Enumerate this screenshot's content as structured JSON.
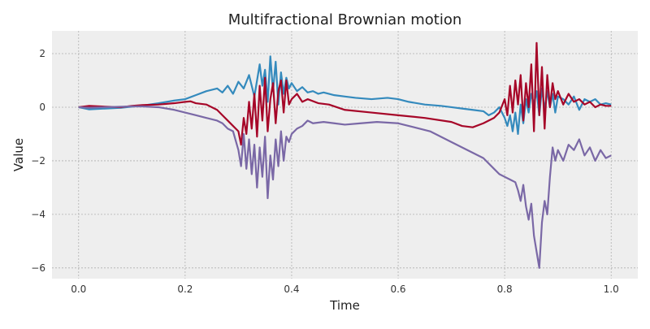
{
  "chart_data": {
    "type": "line",
    "title": "Multifractional Brownian motion",
    "xlabel": "Time",
    "ylabel": "Value",
    "xlim": [
      -0.05,
      1.05
    ],
    "ylim": [
      -6.4,
      2.85
    ],
    "grid": true,
    "legend": "none",
    "x_ticks": [
      0.0,
      0.2,
      0.4,
      0.6,
      0.8,
      1.0
    ],
    "x_tick_labels": [
      "0.0",
      "0.2",
      "0.4",
      "0.6",
      "0.8",
      "1.0"
    ],
    "y_ticks": [
      -6,
      -4,
      -2,
      0,
      2
    ],
    "y_tick_labels": [
      "−6",
      "−4",
      "−2",
      "0",
      "2"
    ],
    "colors": {
      "background": "#eeeeee",
      "grid": "#b0b0b0",
      "series": [
        "#348abd",
        "#a60628",
        "#7a68a6"
      ]
    },
    "series": [
      {
        "color": "#348abd",
        "x": [
          0.0,
          0.02,
          0.05,
          0.08,
          0.1,
          0.12,
          0.15,
          0.18,
          0.2,
          0.22,
          0.24,
          0.26,
          0.27,
          0.28,
          0.29,
          0.3,
          0.31,
          0.32,
          0.33,
          0.34,
          0.345,
          0.35,
          0.355,
          0.36,
          0.365,
          0.37,
          0.375,
          0.38,
          0.385,
          0.39,
          0.395,
          0.4,
          0.41,
          0.42,
          0.43,
          0.44,
          0.45,
          0.46,
          0.48,
          0.5,
          0.52,
          0.55,
          0.58,
          0.6,
          0.62,
          0.65,
          0.68,
          0.7,
          0.72,
          0.74,
          0.76,
          0.77,
          0.78,
          0.79,
          0.8,
          0.805,
          0.81,
          0.815,
          0.82,
          0.825,
          0.83,
          0.835,
          0.84,
          0.845,
          0.85,
          0.855,
          0.86,
          0.865,
          0.87,
          0.875,
          0.88,
          0.885,
          0.89,
          0.895,
          0.9,
          0.91,
          0.92,
          0.93,
          0.94,
          0.95,
          0.96,
          0.97,
          0.98,
          0.99,
          1.0
        ],
        "values": [
          0.0,
          -0.08,
          -0.05,
          -0.02,
          0.02,
          0.06,
          0.15,
          0.25,
          0.3,
          0.45,
          0.6,
          0.7,
          0.55,
          0.8,
          0.5,
          0.95,
          0.7,
          1.2,
          0.4,
          1.6,
          0.8,
          1.4,
          0.2,
          1.9,
          0.6,
          1.7,
          0.1,
          1.3,
          0.5,
          1.1,
          0.7,
          0.9,
          0.6,
          0.75,
          0.55,
          0.6,
          0.5,
          0.55,
          0.45,
          0.4,
          0.35,
          0.3,
          0.35,
          0.3,
          0.2,
          0.1,
          0.05,
          0.0,
          -0.05,
          -0.1,
          -0.15,
          -0.3,
          -0.2,
          0.0,
          -0.4,
          -0.7,
          -0.3,
          -0.9,
          -0.2,
          -1.0,
          0.1,
          -0.6,
          0.3,
          -0.2,
          0.5,
          0.1,
          0.6,
          -0.3,
          0.7,
          -0.1,
          0.6,
          0.0,
          0.5,
          -0.2,
          0.4,
          0.3,
          0.1,
          0.4,
          -0.1,
          0.3,
          0.2,
          0.3,
          0.1,
          0.15,
          0.1
        ]
      },
      {
        "color": "#a60628",
        "x": [
          0.0,
          0.02,
          0.05,
          0.08,
          0.1,
          0.12,
          0.15,
          0.18,
          0.2,
          0.21,
          0.22,
          0.24,
          0.26,
          0.27,
          0.28,
          0.29,
          0.3,
          0.305,
          0.31,
          0.315,
          0.32,
          0.325,
          0.33,
          0.335,
          0.34,
          0.345,
          0.35,
          0.355,
          0.36,
          0.365,
          0.37,
          0.375,
          0.38,
          0.385,
          0.39,
          0.395,
          0.4,
          0.41,
          0.42,
          0.43,
          0.45,
          0.47,
          0.5,
          0.55,
          0.6,
          0.65,
          0.7,
          0.72,
          0.74,
          0.76,
          0.78,
          0.79,
          0.8,
          0.805,
          0.81,
          0.815,
          0.82,
          0.825,
          0.83,
          0.835,
          0.84,
          0.845,
          0.85,
          0.855,
          0.86,
          0.865,
          0.87,
          0.875,
          0.88,
          0.885,
          0.89,
          0.895,
          0.9,
          0.91,
          0.92,
          0.93,
          0.94,
          0.95,
          0.96,
          0.97,
          0.98,
          0.99,
          1.0
        ],
        "values": [
          0.0,
          0.05,
          0.02,
          0.0,
          0.05,
          0.08,
          0.1,
          0.15,
          0.2,
          0.22,
          0.15,
          0.1,
          -0.1,
          -0.3,
          -0.5,
          -0.7,
          -0.9,
          -1.4,
          -0.4,
          -1.0,
          0.2,
          -0.8,
          0.5,
          -1.1,
          0.8,
          -0.5,
          1.1,
          -0.9,
          0.3,
          0.9,
          -0.6,
          0.6,
          1.0,
          -0.2,
          1.0,
          0.1,
          0.3,
          0.5,
          0.2,
          0.3,
          0.15,
          0.1,
          -0.1,
          -0.2,
          -0.3,
          -0.4,
          -0.55,
          -0.7,
          -0.75,
          -0.6,
          -0.4,
          -0.2,
          0.3,
          -0.3,
          0.8,
          -0.2,
          1.0,
          0.1,
          1.2,
          -0.5,
          0.9,
          0.0,
          1.6,
          -0.9,
          2.4,
          -0.3,
          1.5,
          -0.8,
          1.2,
          0.0,
          0.9,
          0.3,
          0.6,
          0.1,
          0.5,
          0.2,
          0.3,
          0.1,
          0.2,
          0.0,
          0.1,
          0.05,
          0.05
        ]
      },
      {
        "color": "#7a68a6",
        "x": [
          0.0,
          0.02,
          0.05,
          0.08,
          0.1,
          0.12,
          0.15,
          0.18,
          0.2,
          0.22,
          0.24,
          0.26,
          0.27,
          0.28,
          0.29,
          0.3,
          0.305,
          0.31,
          0.315,
          0.32,
          0.325,
          0.33,
          0.335,
          0.34,
          0.345,
          0.35,
          0.355,
          0.36,
          0.365,
          0.37,
          0.375,
          0.38,
          0.385,
          0.39,
          0.395,
          0.4,
          0.41,
          0.42,
          0.43,
          0.44,
          0.46,
          0.48,
          0.5,
          0.53,
          0.56,
          0.6,
          0.63,
          0.66,
          0.7,
          0.73,
          0.76,
          0.78,
          0.79,
          0.8,
          0.81,
          0.82,
          0.825,
          0.83,
          0.835,
          0.84,
          0.845,
          0.85,
          0.855,
          0.86,
          0.865,
          0.87,
          0.875,
          0.88,
          0.885,
          0.89,
          0.895,
          0.9,
          0.91,
          0.92,
          0.93,
          0.94,
          0.95,
          0.96,
          0.97,
          0.98,
          0.99,
          1.0
        ],
        "values": [
          0.0,
          -0.02,
          0.0,
          0.02,
          0.03,
          0.03,
          0.0,
          -0.1,
          -0.2,
          -0.3,
          -0.4,
          -0.5,
          -0.6,
          -0.8,
          -0.9,
          -1.6,
          -2.2,
          -1.0,
          -2.3,
          -1.2,
          -2.5,
          -1.4,
          -3.0,
          -1.5,
          -2.6,
          -1.1,
          -3.4,
          -1.8,
          -2.7,
          -1.2,
          -2.2,
          -0.9,
          -2.0,
          -1.1,
          -1.3,
          -1.0,
          -0.8,
          -0.7,
          -0.5,
          -0.6,
          -0.55,
          -0.6,
          -0.65,
          -0.6,
          -0.55,
          -0.6,
          -0.75,
          -0.9,
          -1.3,
          -1.6,
          -1.9,
          -2.3,
          -2.5,
          -2.6,
          -2.7,
          -2.8,
          -3.1,
          -3.5,
          -2.9,
          -3.7,
          -4.2,
          -3.6,
          -4.8,
          -5.4,
          -6.0,
          -4.3,
          -3.5,
          -4.0,
          -2.6,
          -1.5,
          -2.0,
          -1.6,
          -2.0,
          -1.4,
          -1.6,
          -1.2,
          -1.8,
          -1.5,
          -2.0,
          -1.6,
          -1.9,
          -1.8
        ]
      }
    ]
  }
}
